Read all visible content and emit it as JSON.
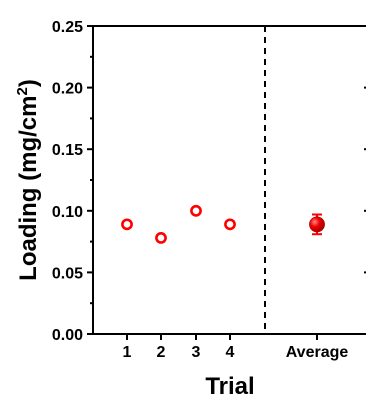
{
  "chart_data": {
    "type": "scatter",
    "xlabel": "Trial",
    "ylabel": {
      "prefix": "Loading (mg/cm",
      "superscript": "2",
      "suffix": ")"
    },
    "ylim": [
      0,
      0.25
    ],
    "y_ticks": [
      "0.00",
      "0.05",
      "0.10",
      "0.15",
      "0.20",
      "0.25"
    ],
    "categories": [
      "1",
      "2",
      "3",
      "4",
      "Average"
    ],
    "series": [
      {
        "style": "open-circle",
        "points": [
          {
            "x": "1",
            "y": 0.089
          },
          {
            "x": "2",
            "y": 0.078
          },
          {
            "x": "3",
            "y": 0.1
          },
          {
            "x": "4",
            "y": 0.089
          }
        ]
      },
      {
        "style": "filled-sphere-with-error-bar",
        "points": [
          {
            "x": "Average",
            "y": 0.089,
            "error": 0.008
          }
        ]
      }
    ],
    "separator": {
      "style": "dashed",
      "between": [
        "4",
        "Average"
      ]
    },
    "grid": false,
    "legend": "none"
  },
  "colors": {
    "marker": "#ff0000",
    "marker_dark": "#b80000",
    "axis": "#000000"
  }
}
